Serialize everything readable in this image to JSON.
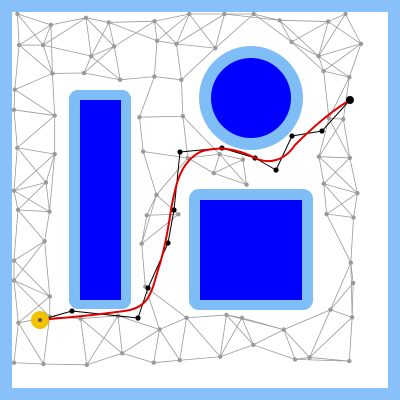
{
  "colors": {
    "border": "#88c0fa",
    "obstacle": "#0000ff",
    "obstacle_margin": "#7ebdf5",
    "mesh_edge": "#9a9a9a",
    "mesh_node": "#9a9a9a",
    "graph_edge": "#000000",
    "graph_node": "#000000",
    "path": "#e00000",
    "start": "#f2c200",
    "goal": "#000000"
  },
  "icons": {
    "start_marker": "circle-marker",
    "goal_marker": "dot-marker"
  },
  "obstacles": [
    {
      "id": "bar-left",
      "shape": "rect"
    },
    {
      "id": "disc-top-right",
      "shape": "circle"
    },
    {
      "id": "square-right",
      "shape": "rect"
    }
  ]
}
